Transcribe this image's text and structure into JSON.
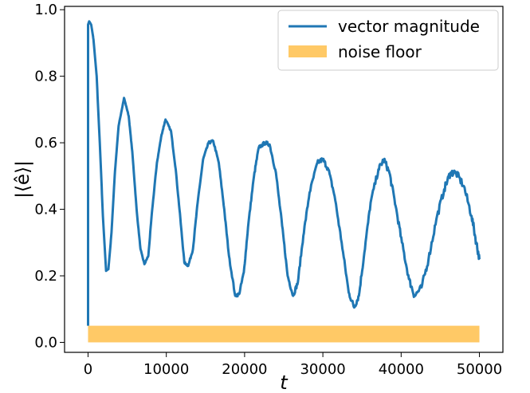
{
  "chart_data": {
    "type": "line",
    "title": "",
    "xlabel": "t",
    "ylabel": "|⟨ê⟩|",
    "xlim": [
      -3000,
      53000
    ],
    "ylim": [
      -0.03,
      1.01
    ],
    "x_ticks": [
      0,
      10000,
      20000,
      30000,
      40000,
      50000
    ],
    "x_tick_labels": [
      "0",
      "10000",
      "20000",
      "30000",
      "40000",
      "50000"
    ],
    "y_ticks": [
      0.0,
      0.2,
      0.4,
      0.6,
      0.8,
      1.0
    ],
    "y_tick_labels": [
      "0.0",
      "0.2",
      "0.4",
      "0.6",
      "0.8",
      "1.0"
    ],
    "grid": false,
    "legend_position": "upper right",
    "series": [
      {
        "name": "vector magnitude",
        "color": "#1f77b4",
        "noise_amplitude": 0.012,
        "points": [
          [
            0,
            0.05
          ],
          [
            0,
            0.955
          ],
          [
            150,
            0.965
          ],
          [
            400,
            0.955
          ],
          [
            700,
            0.91
          ],
          [
            1100,
            0.8
          ],
          [
            1500,
            0.6
          ],
          [
            1900,
            0.38
          ],
          [
            2300,
            0.215
          ],
          [
            2600,
            0.22
          ],
          [
            3000,
            0.33
          ],
          [
            3400,
            0.5
          ],
          [
            3900,
            0.65
          ],
          [
            4600,
            0.735
          ],
          [
            5200,
            0.68
          ],
          [
            5700,
            0.56
          ],
          [
            6200,
            0.4
          ],
          [
            6700,
            0.28
          ],
          [
            7200,
            0.235
          ],
          [
            7700,
            0.26
          ],
          [
            8200,
            0.4
          ],
          [
            8800,
            0.54
          ],
          [
            9400,
            0.625
          ],
          [
            9900,
            0.67
          ],
          [
            10600,
            0.635
          ],
          [
            11200,
            0.52
          ],
          [
            11800,
            0.37
          ],
          [
            12300,
            0.24
          ],
          [
            12800,
            0.23
          ],
          [
            13400,
            0.28
          ],
          [
            14000,
            0.42
          ],
          [
            14700,
            0.55
          ],
          [
            15400,
            0.6
          ],
          [
            16000,
            0.605
          ],
          [
            16700,
            0.54
          ],
          [
            17400,
            0.4
          ],
          [
            18000,
            0.26
          ],
          [
            18800,
            0.14
          ],
          [
            19300,
            0.145
          ],
          [
            19900,
            0.21
          ],
          [
            20500,
            0.36
          ],
          [
            21200,
            0.5
          ],
          [
            21800,
            0.585
          ],
          [
            22600,
            0.6
          ],
          [
            23200,
            0.595
          ],
          [
            24000,
            0.51
          ],
          [
            24800,
            0.35
          ],
          [
            25500,
            0.2
          ],
          [
            26200,
            0.14
          ],
          [
            26800,
            0.18
          ],
          [
            27500,
            0.32
          ],
          [
            28300,
            0.45
          ],
          [
            29300,
            0.54
          ],
          [
            30000,
            0.55
          ],
          [
            30700,
            0.52
          ],
          [
            31500,
            0.44
          ],
          [
            32400,
            0.3
          ],
          [
            33300,
            0.15
          ],
          [
            34000,
            0.105
          ],
          [
            34600,
            0.14
          ],
          [
            35300,
            0.27
          ],
          [
            36100,
            0.42
          ],
          [
            37100,
            0.52
          ],
          [
            37800,
            0.55
          ],
          [
            38500,
            0.51
          ],
          [
            39300,
            0.41
          ],
          [
            40100,
            0.3
          ],
          [
            41000,
            0.19
          ],
          [
            41700,
            0.14
          ],
          [
            42600,
            0.165
          ],
          [
            43500,
            0.25
          ],
          [
            44500,
            0.37
          ],
          [
            45500,
            0.46
          ],
          [
            46300,
            0.51
          ],
          [
            47000,
            0.51
          ],
          [
            48000,
            0.47
          ],
          [
            49000,
            0.38
          ],
          [
            49600,
            0.3
          ],
          [
            50000,
            0.25
          ]
        ]
      },
      {
        "name": "noise floor",
        "color": "#ffa500",
        "fill_opacity": 0.6,
        "x_range": [
          0,
          50000
        ],
        "y_range": [
          0.0,
          0.05
        ]
      }
    ]
  }
}
